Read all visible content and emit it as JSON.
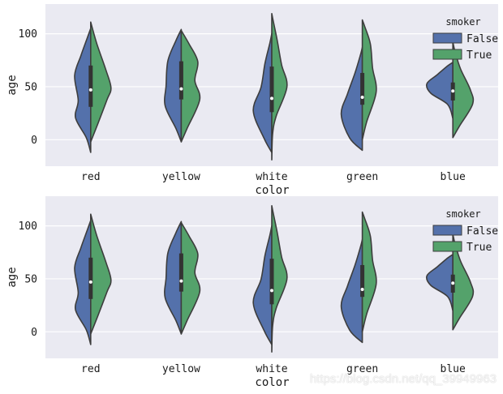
{
  "watermark": "https://blog.csdn.net/qq_39949963",
  "colors": {
    "background": "#eaeaf2",
    "grid": "#ffffff",
    "false_fill": "#5471ab",
    "true_fill": "#54a26b",
    "outline": "#3d3d3d",
    "box": "#333333",
    "median": "#ffffff"
  },
  "chart_data": [
    {
      "type": "violin",
      "split": true,
      "xlabel": "color",
      "ylabel": "age",
      "yticks": [
        0,
        50,
        100
      ],
      "ylim": [
        -25,
        128
      ],
      "grid": true,
      "categories": [
        "red",
        "yellow",
        "white",
        "green",
        "blue"
      ],
      "legend": {
        "title": "smoker",
        "position": "upper-right",
        "entries": [
          "False",
          "True"
        ]
      },
      "series": [
        {
          "name": "False",
          "ranges": [
            [
              -12,
              105
            ],
            [
              -2,
              104
            ],
            [
              -12,
              100
            ],
            [
              -10,
              87
            ],
            [
              20,
              73
            ]
          ]
        },
        {
          "name": "True",
          "ranges": [
            [
              -2,
              111
            ],
            [
              -2,
              103
            ],
            [
              -19,
              119
            ],
            [
              0,
              113
            ],
            [
              2,
              92
            ]
          ]
        }
      ],
      "box": [
        {
          "q1": 31,
          "median": 47,
          "q3": 70
        },
        {
          "q1": 38,
          "median": 48,
          "q3": 74
        },
        {
          "q1": 26,
          "median": 39,
          "q3": 69
        },
        {
          "q1": 33,
          "median": 40,
          "q3": 63
        },
        {
          "q1": 37,
          "median": 46,
          "q3": 54
        }
      ]
    },
    {
      "type": "violin",
      "split": true,
      "xlabel": "color",
      "ylabel": "age",
      "yticks": [
        0,
        50,
        100
      ],
      "ylim": [
        -25,
        128
      ],
      "grid": true,
      "categories": [
        "red",
        "yellow",
        "white",
        "green",
        "blue"
      ],
      "legend": {
        "title": "smoker",
        "position": "upper-right",
        "entries": [
          "False",
          "True"
        ]
      },
      "series": [
        {
          "name": "False",
          "ranges": [
            [
              -12,
              105
            ],
            [
              -2,
              104
            ],
            [
              -12,
              100
            ],
            [
              -10,
              87
            ],
            [
              20,
              73
            ]
          ]
        },
        {
          "name": "True",
          "ranges": [
            [
              -2,
              111
            ],
            [
              -2,
              103
            ],
            [
              -19,
              119
            ],
            [
              0,
              113
            ],
            [
              2,
              92
            ]
          ]
        }
      ],
      "box": [
        {
          "q1": 31,
          "median": 47,
          "q3": 70
        },
        {
          "q1": 38,
          "median": 48,
          "q3": 74
        },
        {
          "q1": 26,
          "median": 39,
          "q3": 69
        },
        {
          "q1": 33,
          "median": 40,
          "q3": 63
        },
        {
          "q1": 37,
          "median": 46,
          "q3": 54
        }
      ]
    }
  ]
}
